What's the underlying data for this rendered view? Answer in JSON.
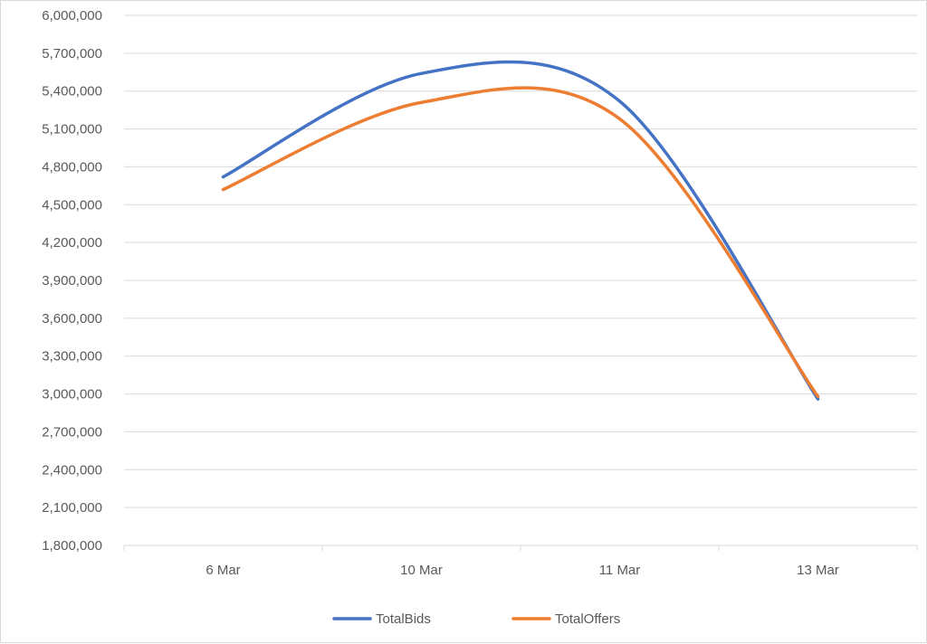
{
  "chart_data": {
    "type": "line",
    "smooth": true,
    "title": "",
    "xlabel": "",
    "ylabel": "",
    "categories": [
      "6 Mar",
      "10 Mar",
      "11 Mar",
      "13 Mar"
    ],
    "ylim": [
      1800000,
      6000000
    ],
    "yticks": [
      1800000,
      2100000,
      2400000,
      2700000,
      3000000,
      3300000,
      3600000,
      3900000,
      4200000,
      4500000,
      4800000,
      5100000,
      5400000,
      5700000,
      6000000
    ],
    "ytick_labels": [
      "1,800,000",
      "2,100,000",
      "2,400,000",
      "2,700,000",
      "3,000,000",
      "3,300,000",
      "3,600,000",
      "3,900,000",
      "4,200,000",
      "4,500,000",
      "4,800,000",
      "5,100,000",
      "5,400,000",
      "5,700,000",
      "6,000,000"
    ],
    "grid": "horizontal",
    "legend_position": "bottom",
    "series": [
      {
        "name": "TotalBids",
        "color": "#4472c4",
        "values": [
          4720000,
          5540000,
          5320000,
          2960000
        ]
      },
      {
        "name": "TotalOffers",
        "color": "#ed7d31",
        "values": [
          4620000,
          5310000,
          5180000,
          2980000
        ]
      }
    ]
  }
}
